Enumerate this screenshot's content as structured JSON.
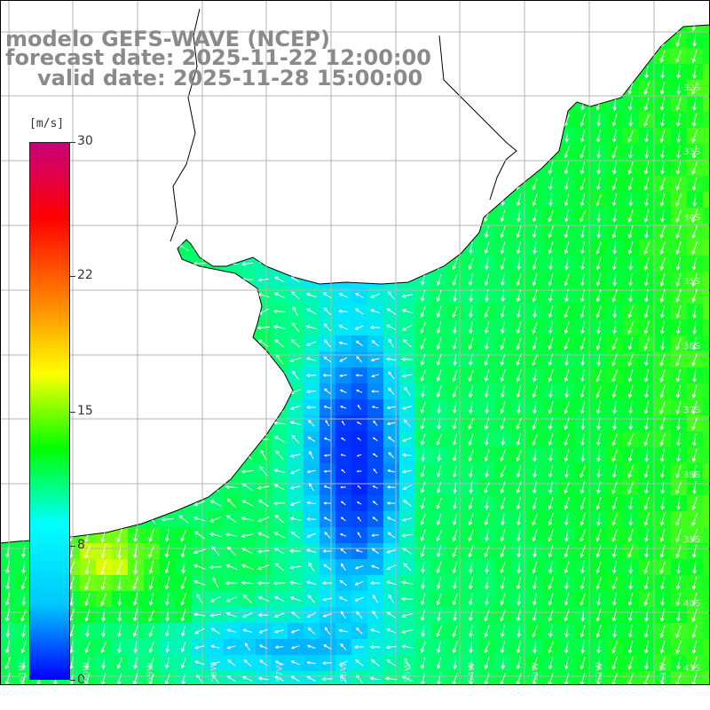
{
  "header": {
    "model": "modelo GEFS-WAVE (NCEP)",
    "forecast": "forecast date: 2025-11-22 12:00:00",
    "valid": "valid date: 2025-11-28 15:00:00"
  },
  "colorbar": {
    "unit": "[m/s]",
    "ticks": [
      "30",
      "22",
      "15",
      "8",
      "0"
    ],
    "stops": [
      "#0000ff",
      "#00c8ff",
      "#00ffff",
      "#00ff00",
      "#ffff00",
      "#ff8000",
      "#ff0000",
      "#c8007a"
    ]
  },
  "map": {
    "lat_labels": [
      "32S",
      "33S",
      "34S",
      "35S",
      "36S",
      "37S",
      "38S",
      "39S",
      "40S",
      "41S"
    ],
    "lon_labels": [
      "61W",
      "60W",
      "59W",
      "58W",
      "57W",
      "56W",
      "55W",
      "54W",
      "53W",
      "52W",
      "51W"
    ],
    "land_color": "#ffffff",
    "coast_color": "#000000",
    "grid_color": "#b4b4b4",
    "arrow_color": "#ffffff"
  }
}
